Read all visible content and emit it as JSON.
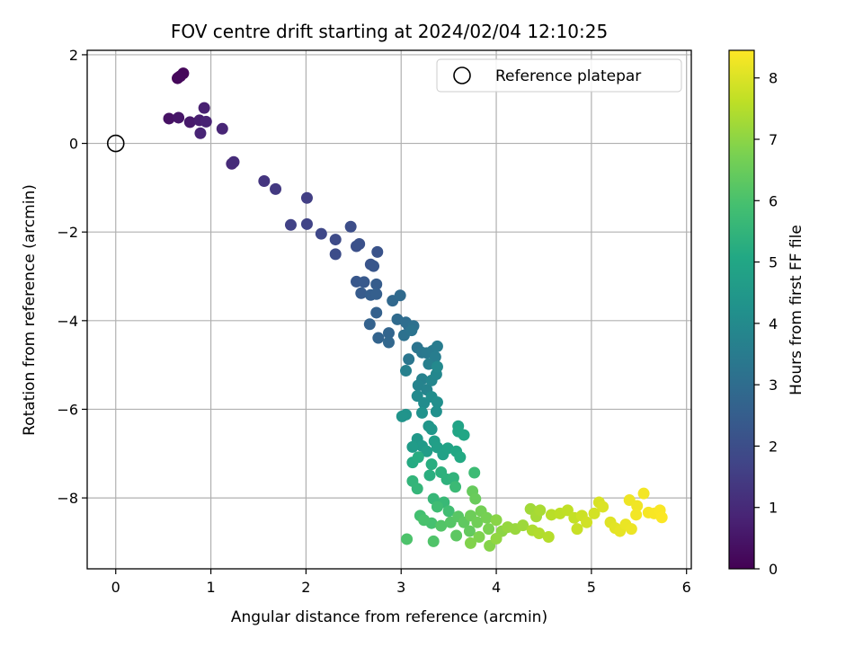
{
  "chart_data": {
    "type": "scatter",
    "title": "FOV centre drift starting at 2024/02/04 12:10:25",
    "xlabel": "Angular distance from reference (arcmin)",
    "ylabel": "Rotation from reference (arcmin)",
    "xlim": [
      -0.3,
      6.05
    ],
    "ylim": [
      -9.6,
      2.1
    ],
    "xticks": [
      0,
      1,
      2,
      3,
      4,
      5,
      6
    ],
    "yticks": [
      2,
      0,
      -2,
      -4,
      -6,
      -8
    ],
    "grid": true,
    "legend": {
      "position": "top-right",
      "entries": [
        {
          "label": "Reference platepar",
          "marker": "open-circle"
        }
      ]
    },
    "reference_point": {
      "x": 0,
      "y": 0
    },
    "colorbar": {
      "label": "Hours from first FF file",
      "colormap": "viridis",
      "range": [
        0,
        8.45
      ],
      "ticks": [
        0,
        1,
        2,
        3,
        4,
        5,
        6,
        7,
        8
      ]
    },
    "point_columns": [
      "x",
      "y",
      "hours"
    ],
    "points": [
      [
        0.65,
        1.47,
        0.1
      ],
      [
        0.68,
        1.52,
        0.12
      ],
      [
        0.71,
        1.58,
        0.15
      ],
      [
        0.66,
        1.49,
        0.18
      ],
      [
        0.56,
        0.56,
        0.4
      ],
      [
        0.66,
        0.58,
        0.5
      ],
      [
        0.78,
        0.48,
        0.6
      ],
      [
        0.88,
        0.52,
        0.7
      ],
      [
        0.93,
        0.8,
        0.75
      ],
      [
        0.95,
        0.49,
        0.8
      ],
      [
        0.89,
        0.23,
        0.85
      ],
      [
        1.12,
        0.33,
        0.9
      ],
      [
        1.22,
        -0.46,
        1.0
      ],
      [
        1.24,
        -0.42,
        1.05
      ],
      [
        1.56,
        -0.85,
        1.3
      ],
      [
        1.68,
        -1.03,
        1.4
      ],
      [
        2.01,
        -1.23,
        1.55
      ],
      [
        1.84,
        -1.84,
        1.65
      ],
      [
        2.01,
        -1.82,
        1.7
      ],
      [
        2.16,
        -2.04,
        1.8
      ],
      [
        2.31,
        -2.17,
        1.9
      ],
      [
        2.31,
        -2.5,
        1.95
      ],
      [
        2.47,
        -1.88,
        2.0
      ],
      [
        2.53,
        -2.32,
        2.05
      ],
      [
        2.56,
        -2.27,
        2.1
      ],
      [
        2.75,
        -2.45,
        2.15
      ],
      [
        2.68,
        -2.73,
        2.2
      ],
      [
        2.71,
        -2.77,
        2.25
      ],
      [
        2.53,
        -3.12,
        2.3
      ],
      [
        2.61,
        -3.13,
        2.35
      ],
      [
        2.58,
        -3.38,
        2.4
      ],
      [
        2.74,
        -3.18,
        2.45
      ],
      [
        2.68,
        -3.42,
        2.5
      ],
      [
        2.74,
        -3.4,
        2.55
      ],
      [
        2.74,
        -3.82,
        2.6
      ],
      [
        2.67,
        -4.08,
        2.65
      ],
      [
        2.76,
        -4.39,
        2.7
      ],
      [
        2.87,
        -4.28,
        2.75
      ],
      [
        2.87,
        -4.49,
        2.8
      ],
      [
        2.91,
        -3.55,
        2.85
      ],
      [
        2.99,
        -3.43,
        2.9
      ],
      [
        2.96,
        -3.97,
        2.95
      ],
      [
        3.05,
        -4.04,
        3.0
      ],
      [
        3.08,
        -4.12,
        3.05
      ],
      [
        3.13,
        -4.12,
        3.1
      ],
      [
        3.03,
        -4.33,
        3.15
      ],
      [
        3.11,
        -4.22,
        3.2
      ],
      [
        3.17,
        -4.61,
        3.25
      ],
      [
        3.08,
        -4.87,
        3.3
      ],
      [
        3.22,
        -4.72,
        3.35
      ],
      [
        3.27,
        -4.73,
        3.4
      ],
      [
        3.33,
        -4.68,
        3.45
      ],
      [
        3.38,
        -4.58,
        3.5
      ],
      [
        3.36,
        -4.82,
        3.55
      ],
      [
        3.29,
        -4.98,
        3.6
      ],
      [
        3.05,
        -5.13,
        3.65
      ],
      [
        3.22,
        -5.32,
        3.7
      ],
      [
        3.18,
        -5.46,
        3.75
      ],
      [
        3.27,
        -5.56,
        3.8
      ],
      [
        3.32,
        -5.35,
        3.85
      ],
      [
        3.37,
        -5.21,
        3.9
      ],
      [
        3.38,
        -5.04,
        3.95
      ],
      [
        3.17,
        -5.7,
        4.0
      ],
      [
        3.24,
        -5.86,
        4.05
      ],
      [
        3.32,
        -5.72,
        4.1
      ],
      [
        3.38,
        -5.84,
        4.15
      ],
      [
        3.37,
        -6.05,
        4.2
      ],
      [
        3.22,
        -6.08,
        4.25
      ],
      [
        3.05,
        -6.12,
        4.3
      ],
      [
        3.01,
        -6.16,
        4.35
      ],
      [
        3.29,
        -6.38,
        4.4
      ],
      [
        3.32,
        -6.45,
        4.45
      ],
      [
        3.17,
        -6.67,
        4.5
      ],
      [
        3.22,
        -6.83,
        4.55
      ],
      [
        3.12,
        -6.85,
        4.6
      ],
      [
        3.27,
        -6.95,
        4.65
      ],
      [
        3.35,
        -6.72,
        4.7
      ],
      [
        3.38,
        -6.86,
        4.75
      ],
      [
        3.44,
        -7.02,
        4.8
      ],
      [
        3.49,
        -6.88,
        4.85
      ],
      [
        3.6,
        -6.38,
        4.9
      ],
      [
        3.6,
        -6.5,
        4.95
      ],
      [
        3.66,
        -6.58,
        5.0
      ],
      [
        3.58,
        -6.95,
        5.05
      ],
      [
        3.62,
        -7.08,
        5.1
      ],
      [
        3.12,
        -7.2,
        5.15
      ],
      [
        3.18,
        -7.08,
        5.2
      ],
      [
        3.32,
        -7.24,
        5.25
      ],
      [
        3.3,
        -7.49,
        5.3
      ],
      [
        3.42,
        -7.42,
        5.35
      ],
      [
        3.48,
        -7.58,
        5.4
      ],
      [
        3.55,
        -7.55,
        5.45
      ],
      [
        3.12,
        -7.62,
        5.5
      ],
      [
        3.17,
        -7.79,
        5.55
      ],
      [
        3.34,
        -8.02,
        5.6
      ],
      [
        3.45,
        -8.1,
        5.65
      ],
      [
        3.57,
        -7.75,
        5.7
      ],
      [
        3.77,
        -7.43,
        5.75
      ],
      [
        3.38,
        -8.2,
        5.8
      ],
      [
        3.5,
        -8.3,
        5.85
      ],
      [
        3.2,
        -8.4,
        5.9
      ],
      [
        3.32,
        -8.57,
        5.95
      ],
      [
        3.24,
        -8.5,
        6.0
      ],
      [
        3.06,
        -8.93,
        6.05
      ],
      [
        3.34,
        -8.98,
        6.1
      ],
      [
        3.42,
        -8.63,
        6.15
      ],
      [
        3.52,
        -8.55,
        6.2
      ],
      [
        3.6,
        -8.42,
        6.25
      ],
      [
        3.58,
        -8.85,
        6.3
      ],
      [
        3.66,
        -8.55,
        6.35
      ],
      [
        3.72,
        -8.75,
        6.4
      ],
      [
        3.75,
        -7.85,
        6.45
      ],
      [
        3.78,
        -8.02,
        6.5
      ],
      [
        3.73,
        -8.4,
        6.55
      ],
      [
        3.8,
        -8.55,
        6.6
      ],
      [
        3.84,
        -8.3,
        6.65
      ],
      [
        3.9,
        -8.45,
        6.7
      ],
      [
        3.92,
        -8.7,
        6.75
      ],
      [
        3.82,
        -8.88,
        6.8
      ],
      [
        3.73,
        -9.02,
        6.85
      ],
      [
        3.93,
        -9.08,
        6.9
      ],
      [
        4.0,
        -8.5,
        6.95
      ],
      [
        4.06,
        -8.75,
        7.0
      ],
      [
        4.0,
        -8.92,
        7.05
      ],
      [
        4.12,
        -8.66,
        7.1
      ],
      [
        4.2,
        -8.7,
        7.15
      ],
      [
        4.28,
        -8.62,
        7.2
      ],
      [
        4.36,
        -8.25,
        7.25
      ],
      [
        4.42,
        -8.42,
        7.3
      ],
      [
        4.46,
        -8.28,
        7.35
      ],
      [
        4.38,
        -8.73,
        7.4
      ],
      [
        4.45,
        -8.8,
        7.45
      ],
      [
        4.55,
        -8.88,
        7.5
      ],
      [
        4.58,
        -8.38,
        7.55
      ],
      [
        4.67,
        -8.35,
        7.6
      ],
      [
        4.75,
        -8.28,
        7.65
      ],
      [
        4.82,
        -8.45,
        7.7
      ],
      [
        4.85,
        -8.7,
        7.75
      ],
      [
        4.9,
        -8.4,
        7.8
      ],
      [
        4.95,
        -8.55,
        7.85
      ],
      [
        5.03,
        -8.35,
        7.9
      ],
      [
        5.08,
        -8.1,
        7.95
      ],
      [
        5.12,
        -8.2,
        8.0
      ],
      [
        5.2,
        -8.55,
        8.05
      ],
      [
        5.25,
        -8.68,
        8.1
      ],
      [
        5.3,
        -8.75,
        8.15
      ],
      [
        5.36,
        -8.6,
        8.2
      ],
      [
        5.42,
        -8.7,
        8.22
      ],
      [
        5.4,
        -8.05,
        8.25
      ],
      [
        5.48,
        -8.18,
        8.28
      ],
      [
        5.47,
        -8.38,
        8.3
      ],
      [
        5.55,
        -7.9,
        8.32
      ],
      [
        5.6,
        -8.33,
        8.35
      ],
      [
        5.66,
        -8.35,
        8.38
      ],
      [
        5.72,
        -8.28,
        8.4
      ],
      [
        5.74,
        -8.44,
        8.42
      ]
    ]
  }
}
